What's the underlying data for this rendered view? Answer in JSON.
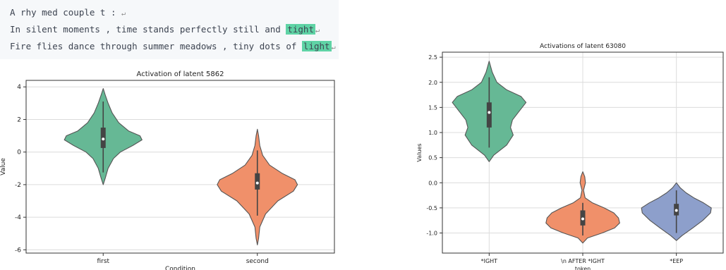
{
  "text_panel": {
    "lines": [
      {
        "text": "A rhy med couple t : ",
        "highlight": "",
        "highlight_tail": "",
        "mark": "↵"
      },
      {
        "text": "In silent moments , time stands perfectly still and ",
        "highlight": "tight",
        "highlight_tail": "",
        "mark": "↵"
      },
      {
        "text": "Fire flies dance through summer meadows , tiny dots of ",
        "highlight": "light",
        "highlight_tail": "",
        "mark": "↵"
      }
    ]
  },
  "chart_data": [
    {
      "type": "violin",
      "title": "Activation of latent 5862",
      "xlabel": "Condition",
      "ylabel": "Value",
      "ylim": [
        -6.2,
        4.4
      ],
      "yticks": [
        -6,
        -4,
        -2,
        0,
        2,
        4
      ],
      "grid": "horizontal",
      "categories": [
        "first",
        "second"
      ],
      "colors": [
        "#66b895",
        "#f0906a"
      ],
      "violins": [
        {
          "category": "first",
          "min": -2.0,
          "max": 3.9,
          "q1": 0.25,
          "median": 0.8,
          "q3": 1.5,
          "whisker_low": -1.25,
          "whisker_high": 3.1,
          "profile": [
            [
              -2.0,
              0
            ],
            [
              -1.6,
              0.05
            ],
            [
              -1.0,
              0.12
            ],
            [
              -0.4,
              0.25
            ],
            [
              0.0,
              0.42
            ],
            [
              0.4,
              0.72
            ],
            [
              0.75,
              0.95
            ],
            [
              1.0,
              0.9
            ],
            [
              1.3,
              0.62
            ],
            [
              1.8,
              0.38
            ],
            [
              2.4,
              0.22
            ],
            [
              3.0,
              0.12
            ],
            [
              3.5,
              0.05
            ],
            [
              3.9,
              0
            ]
          ]
        },
        {
          "category": "second",
          "min": -5.7,
          "max": 1.4,
          "q1": -2.3,
          "median": -1.9,
          "q3": -1.3,
          "whisker_low": -3.9,
          "whisker_high": 0.1,
          "profile": [
            [
              -5.7,
              0
            ],
            [
              -5.3,
              0.03
            ],
            [
              -4.6,
              0.06
            ],
            [
              -3.8,
              0.2
            ],
            [
              -3.0,
              0.5
            ],
            [
              -2.4,
              0.88
            ],
            [
              -2.0,
              0.98
            ],
            [
              -1.7,
              0.92
            ],
            [
              -1.3,
              0.6
            ],
            [
              -0.8,
              0.3
            ],
            [
              -0.2,
              0.13
            ],
            [
              0.4,
              0.06
            ],
            [
              1.0,
              0.03
            ],
            [
              1.4,
              0
            ]
          ]
        }
      ]
    },
    {
      "type": "violin",
      "title": "Activations of latent 63080",
      "xlabel": "token",
      "ylabel": "Values",
      "ylim": [
        -1.4,
        2.6
      ],
      "yticks": [
        -1.0,
        -0.5,
        0.0,
        0.5,
        1.0,
        1.5,
        2.0,
        2.5
      ],
      "grid": "both",
      "categories": [
        "*IGHT",
        "\\n AFTER *IGHT",
        "*EEP"
      ],
      "colors": [
        "#66b895",
        "#f0906a",
        "#8d9fcb"
      ],
      "violins": [
        {
          "category": "*IGHT",
          "min": 0.42,
          "max": 2.42,
          "q1": 1.1,
          "median": 1.4,
          "q3": 1.6,
          "whisker_low": 0.7,
          "whisker_high": 2.1,
          "profile": [
            [
              0.42,
              0
            ],
            [
              0.55,
              0.12
            ],
            [
              0.75,
              0.45
            ],
            [
              0.95,
              0.62
            ],
            [
              1.1,
              0.55
            ],
            [
              1.25,
              0.6
            ],
            [
              1.45,
              0.8
            ],
            [
              1.6,
              0.95
            ],
            [
              1.72,
              0.82
            ],
            [
              1.85,
              0.45
            ],
            [
              2.0,
              0.2
            ],
            [
              2.2,
              0.08
            ],
            [
              2.42,
              0
            ]
          ]
        },
        {
          "category": "\\n AFTER *IGHT",
          "min": -1.2,
          "max": 0.22,
          "q1": -0.85,
          "median": -0.72,
          "q3": -0.55,
          "whisker_low": -1.05,
          "whisker_high": -0.4,
          "profile": [
            [
              -1.2,
              0
            ],
            [
              -1.1,
              0.12
            ],
            [
              -1.0,
              0.5
            ],
            [
              -0.9,
              0.82
            ],
            [
              -0.8,
              0.95
            ],
            [
              -0.7,
              0.92
            ],
            [
              -0.6,
              0.8
            ],
            [
              -0.5,
              0.55
            ],
            [
              -0.4,
              0.25
            ],
            [
              -0.3,
              0.06
            ],
            [
              -0.15,
              0.02
            ],
            [
              0.0,
              0.07
            ],
            [
              0.12,
              0.05
            ],
            [
              0.22,
              0
            ]
          ]
        },
        {
          "category": "*EEP",
          "min": -1.15,
          "max": 0.0,
          "q1": -0.65,
          "median": -0.55,
          "q3": -0.42,
          "whisker_low": -1.0,
          "whisker_high": -0.15,
          "profile": [
            [
              -1.15,
              0
            ],
            [
              -1.05,
              0.15
            ],
            [
              -0.9,
              0.42
            ],
            [
              -0.75,
              0.68
            ],
            [
              -0.6,
              0.88
            ],
            [
              -0.5,
              0.9
            ],
            [
              -0.4,
              0.7
            ],
            [
              -0.3,
              0.45
            ],
            [
              -0.2,
              0.25
            ],
            [
              -0.1,
              0.1
            ],
            [
              0.0,
              0
            ]
          ]
        }
      ]
    }
  ]
}
